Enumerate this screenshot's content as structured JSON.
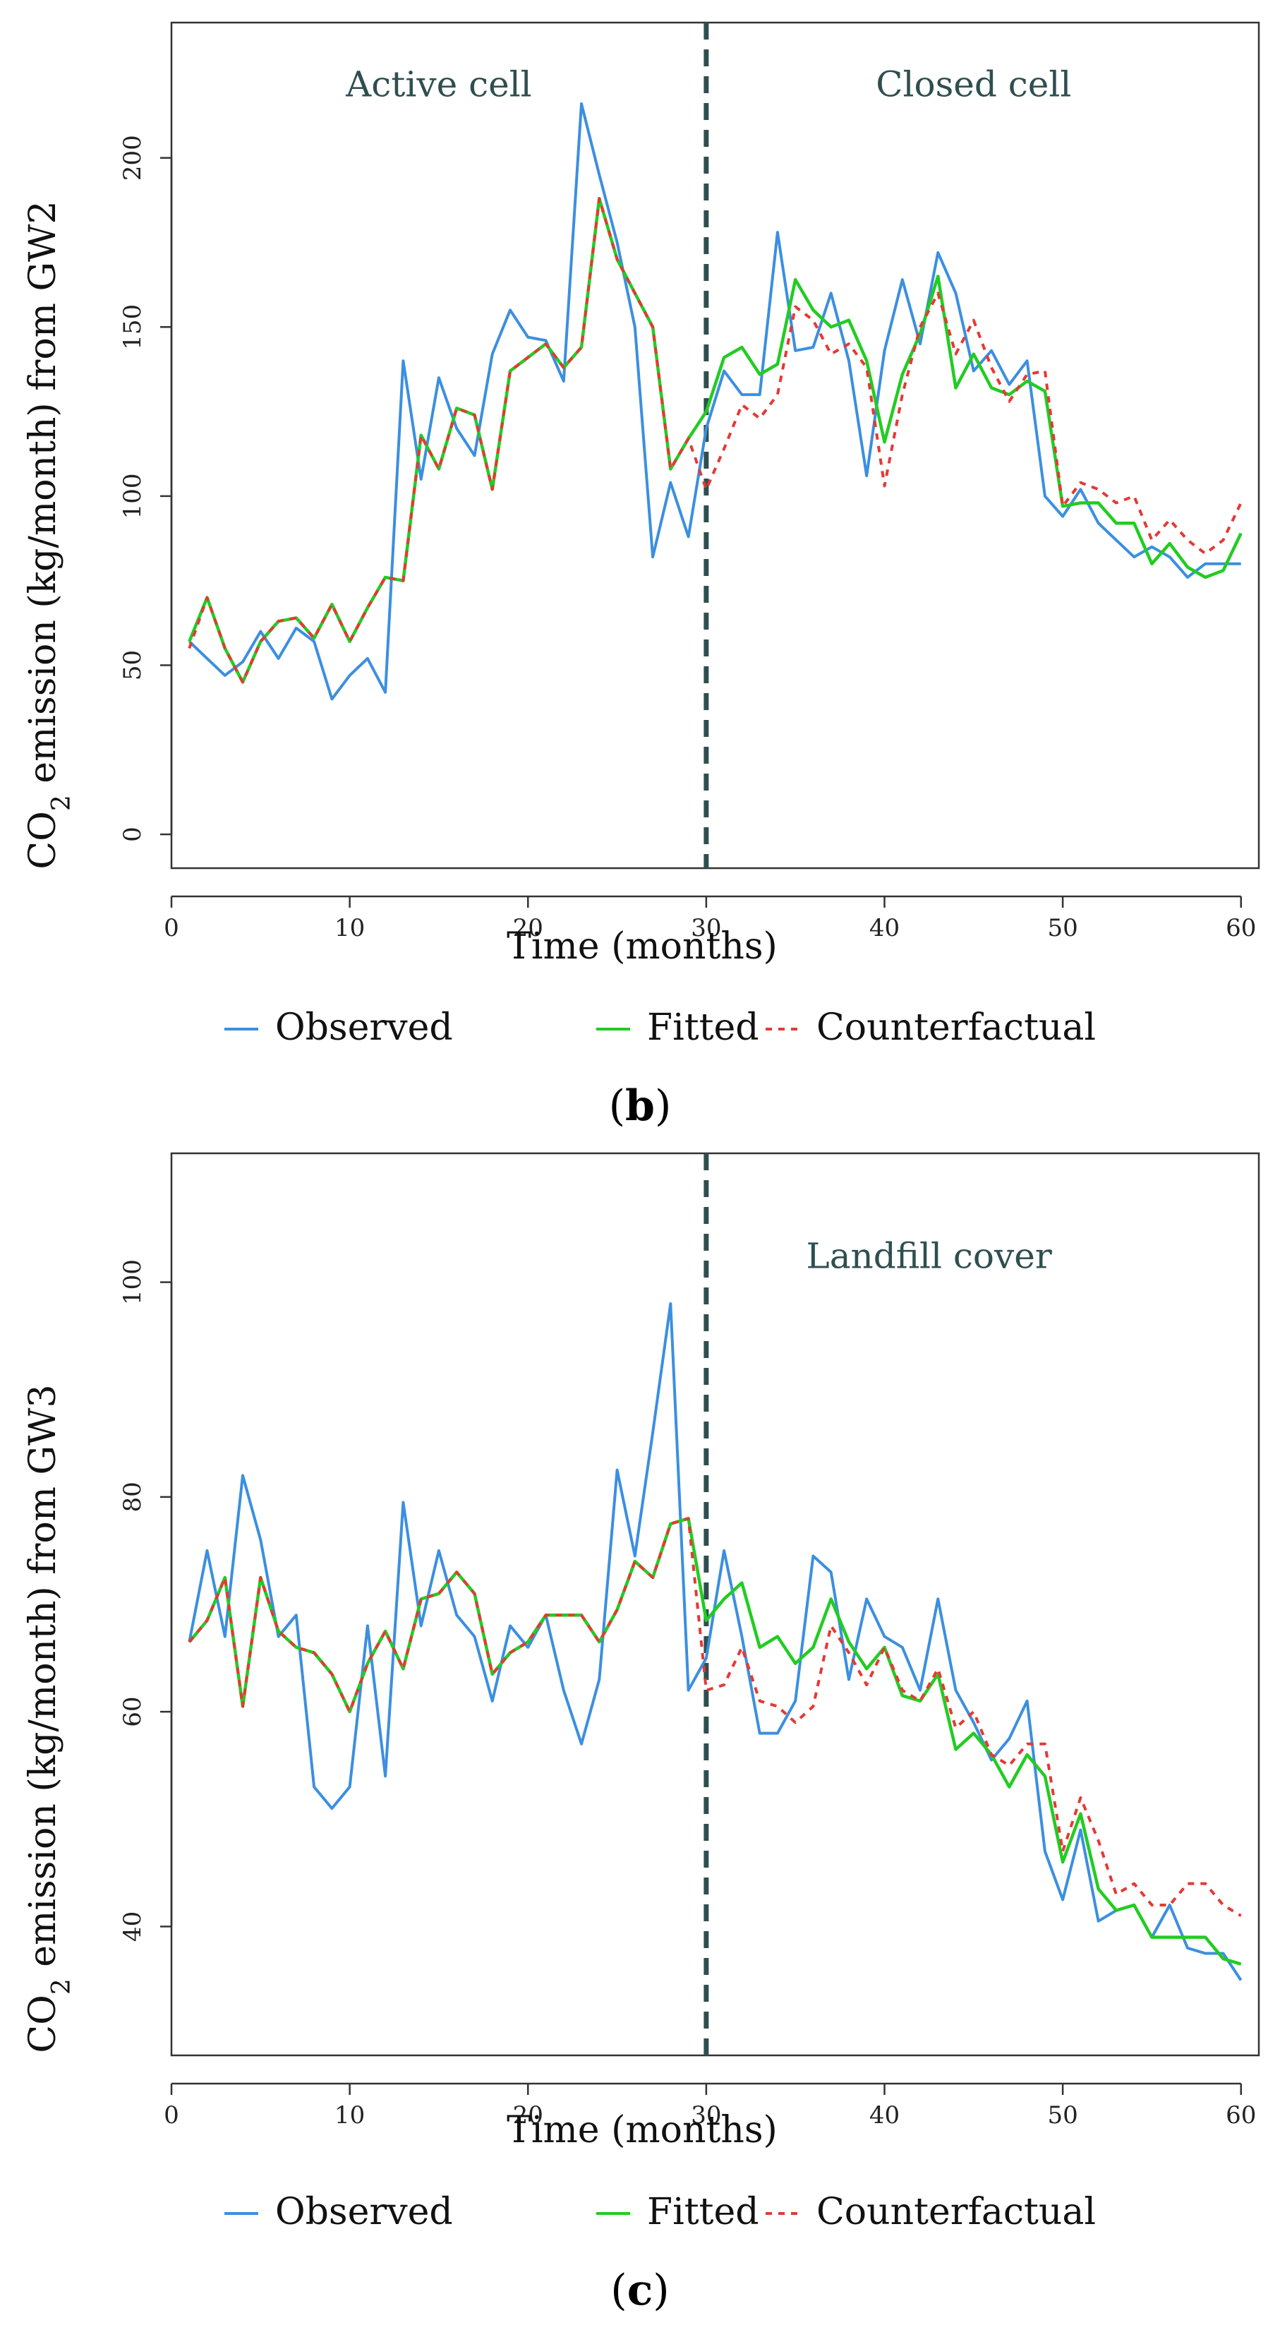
{
  "figure": {
    "panels": [
      "(b)",
      "(c)"
    ],
    "legend": [
      "Observed",
      "Fitted",
      "Counterfactual"
    ]
  },
  "colors": {
    "observed": "#3b8fe0",
    "fitted": "#22cc22",
    "counterfactual": "#e53935",
    "intervention": "#2f4f4f"
  },
  "chart_data": [
    {
      "type": "line",
      "panel": "(b)",
      "panel_letter": "b",
      "xlabel": "Time (months)",
      "ylabel": "CO2 emission (kg/month) from GW2",
      "ylabel_parts": {
        "pre": "CO",
        "sub": "2",
        "post": " emission (kg/month) from GW2"
      },
      "xlim": [
        0,
        61
      ],
      "ylim": [
        -10,
        240
      ],
      "xticks": [
        0,
        10,
        20,
        30,
        40,
        50,
        60
      ],
      "yticks": [
        0,
        50,
        100,
        150,
        200
      ],
      "intervention_x": 30,
      "annotations": [
        {
          "text": "Active cell",
          "x": 15,
          "y": 222
        },
        {
          "text": "Closed cell",
          "x": 45,
          "y": 222
        }
      ],
      "legend": [
        "Observed",
        "Fitted",
        "Counterfactual"
      ],
      "x": [
        1,
        2,
        3,
        4,
        5,
        6,
        7,
        8,
        9,
        10,
        11,
        12,
        13,
        14,
        15,
        16,
        17,
        18,
        19,
        20,
        21,
        22,
        23,
        24,
        25,
        26,
        27,
        28,
        29,
        30,
        31,
        32,
        33,
        34,
        35,
        36,
        37,
        38,
        39,
        40,
        41,
        42,
        43,
        44,
        45,
        46,
        47,
        48,
        49,
        50,
        51,
        52,
        53,
        54,
        55,
        56,
        57,
        58,
        59,
        60
      ],
      "series": [
        {
          "name": "Observed",
          "values": [
            57,
            52,
            47,
            51,
            60,
            52,
            61,
            57,
            40,
            47,
            52,
            42,
            140,
            105,
            135,
            120,
            112,
            142,
            155,
            147,
            146,
            134,
            216,
            195,
            175,
            150,
            82,
            104,
            88,
            120,
            137,
            130,
            130,
            178,
            143,
            144,
            160,
            140,
            106,
            143,
            164,
            145,
            172,
            160,
            137,
            143,
            133,
            140,
            100,
            94,
            102,
            92,
            87,
            82,
            85,
            82,
            76,
            80,
            80,
            80
          ]
        },
        {
          "name": "Fitted",
          "values": [
            57,
            70,
            55,
            45,
            57,
            63,
            64,
            58,
            68,
            57,
            67,
            76,
            75,
            118,
            108,
            126,
            124,
            102,
            137,
            141,
            145,
            138,
            144,
            188,
            170,
            160,
            150,
            108,
            117,
            125,
            141,
            144,
            136,
            139,
            164,
            155,
            150,
            152,
            140,
            116,
            136,
            148,
            165,
            132,
            142,
            132,
            130,
            134,
            131,
            97,
            98,
            98,
            92,
            92,
            80,
            86,
            79,
            76,
            78,
            89
          ]
        },
        {
          "name": "Counterfactual",
          "values": [
            55,
            70,
            55,
            45,
            57,
            63,
            64,
            58,
            68,
            57,
            67,
            76,
            75,
            118,
            108,
            126,
            124,
            102,
            137,
            141,
            145,
            138,
            144,
            188,
            170,
            160,
            150,
            108,
            117,
            102,
            114,
            127,
            123,
            130,
            156,
            152,
            142,
            145,
            138,
            103,
            130,
            150,
            160,
            142,
            152,
            138,
            128,
            136,
            137,
            97,
            104,
            102,
            98,
            100,
            87,
            93,
            87,
            83,
            87,
            98
          ]
        }
      ]
    },
    {
      "type": "line",
      "panel": "(c)",
      "panel_letter": "c",
      "xlabel": "Time (months)",
      "ylabel": "CO2 emission (kg/month) from GW3",
      "ylabel_parts": {
        "pre": "CO",
        "sub": "2",
        "post": " emission (kg/month) from GW3"
      },
      "xlim": [
        0,
        61
      ],
      "ylim": [
        28,
        112
      ],
      "xticks": [
        0,
        10,
        20,
        30,
        40,
        50,
        60
      ],
      "yticks": [
        40,
        60,
        80,
        100
      ],
      "intervention_x": 30,
      "annotations": [
        {
          "text": "Landfill cover",
          "x": 42.5,
          "y": 102.5
        }
      ],
      "legend": [
        "Observed",
        "Fitted",
        "Counterfactual"
      ],
      "x": [
        1,
        2,
        3,
        4,
        5,
        6,
        7,
        8,
        9,
        10,
        11,
        12,
        13,
        14,
        15,
        16,
        17,
        18,
        19,
        20,
        21,
        22,
        23,
        24,
        25,
        26,
        27,
        28,
        29,
        30,
        31,
        32,
        33,
        34,
        35,
        36,
        37,
        38,
        39,
        40,
        41,
        42,
        43,
        44,
        45,
        46,
        47,
        48,
        49,
        50,
        51,
        52,
        53,
        54,
        55,
        56,
        57,
        58,
        59,
        60
      ],
      "series": [
        {
          "name": "Observed",
          "values": [
            66.5,
            75,
            67,
            82,
            76,
            67,
            69,
            53,
            51,
            53,
            68,
            54,
            79.5,
            68,
            75,
            69,
            67,
            61,
            68,
            66,
            69,
            62,
            57,
            63,
            82.5,
            74.5,
            86,
            98,
            62,
            65,
            75,
            67,
            58,
            58,
            61,
            74.5,
            73,
            63,
            70.5,
            67,
            66,
            62,
            70.5,
            62,
            59,
            55.5,
            57.5,
            61,
            47,
            42.5,
            49,
            40.5,
            41.5,
            42,
            39,
            42,
            38,
            37.5,
            37.5,
            35
          ]
        },
        {
          "name": "Fitted",
          "values": [
            66.5,
            68.5,
            72.5,
            60.5,
            72.5,
            67.5,
            66,
            65.5,
            63.5,
            60,
            64.5,
            67.5,
            64,
            70.5,
            71,
            73,
            71,
            63.5,
            65.5,
            66.5,
            69,
            69,
            69,
            66.5,
            69.5,
            74,
            72.5,
            77.5,
            78,
            68.5,
            70.5,
            72,
            66,
            67,
            64.5,
            66,
            70.5,
            66.5,
            64,
            66,
            61.5,
            61,
            63.5,
            56.5,
            58,
            56,
            53,
            56,
            54,
            46,
            50.5,
            43.5,
            41.5,
            42,
            39,
            39,
            39,
            39,
            37,
            36.5
          ]
        },
        {
          "name": "Counterfactual",
          "values": [
            66.5,
            68.5,
            72.5,
            60.5,
            72.5,
            67.5,
            66,
            65.5,
            63.5,
            60,
            64.5,
            67.5,
            64,
            70.5,
            71,
            73,
            71,
            63.5,
            65.5,
            66.5,
            69,
            69,
            69,
            66.5,
            69.5,
            74,
            72.5,
            77.5,
            78,
            62,
            62.5,
            66,
            61,
            60.5,
            59,
            60.5,
            68,
            65.5,
            62.5,
            66,
            62,
            61,
            64,
            58.5,
            60,
            56,
            55,
            57,
            57,
            47,
            52,
            48,
            43,
            44,
            42,
            42,
            44,
            44,
            42,
            41
          ]
        }
      ]
    }
  ]
}
